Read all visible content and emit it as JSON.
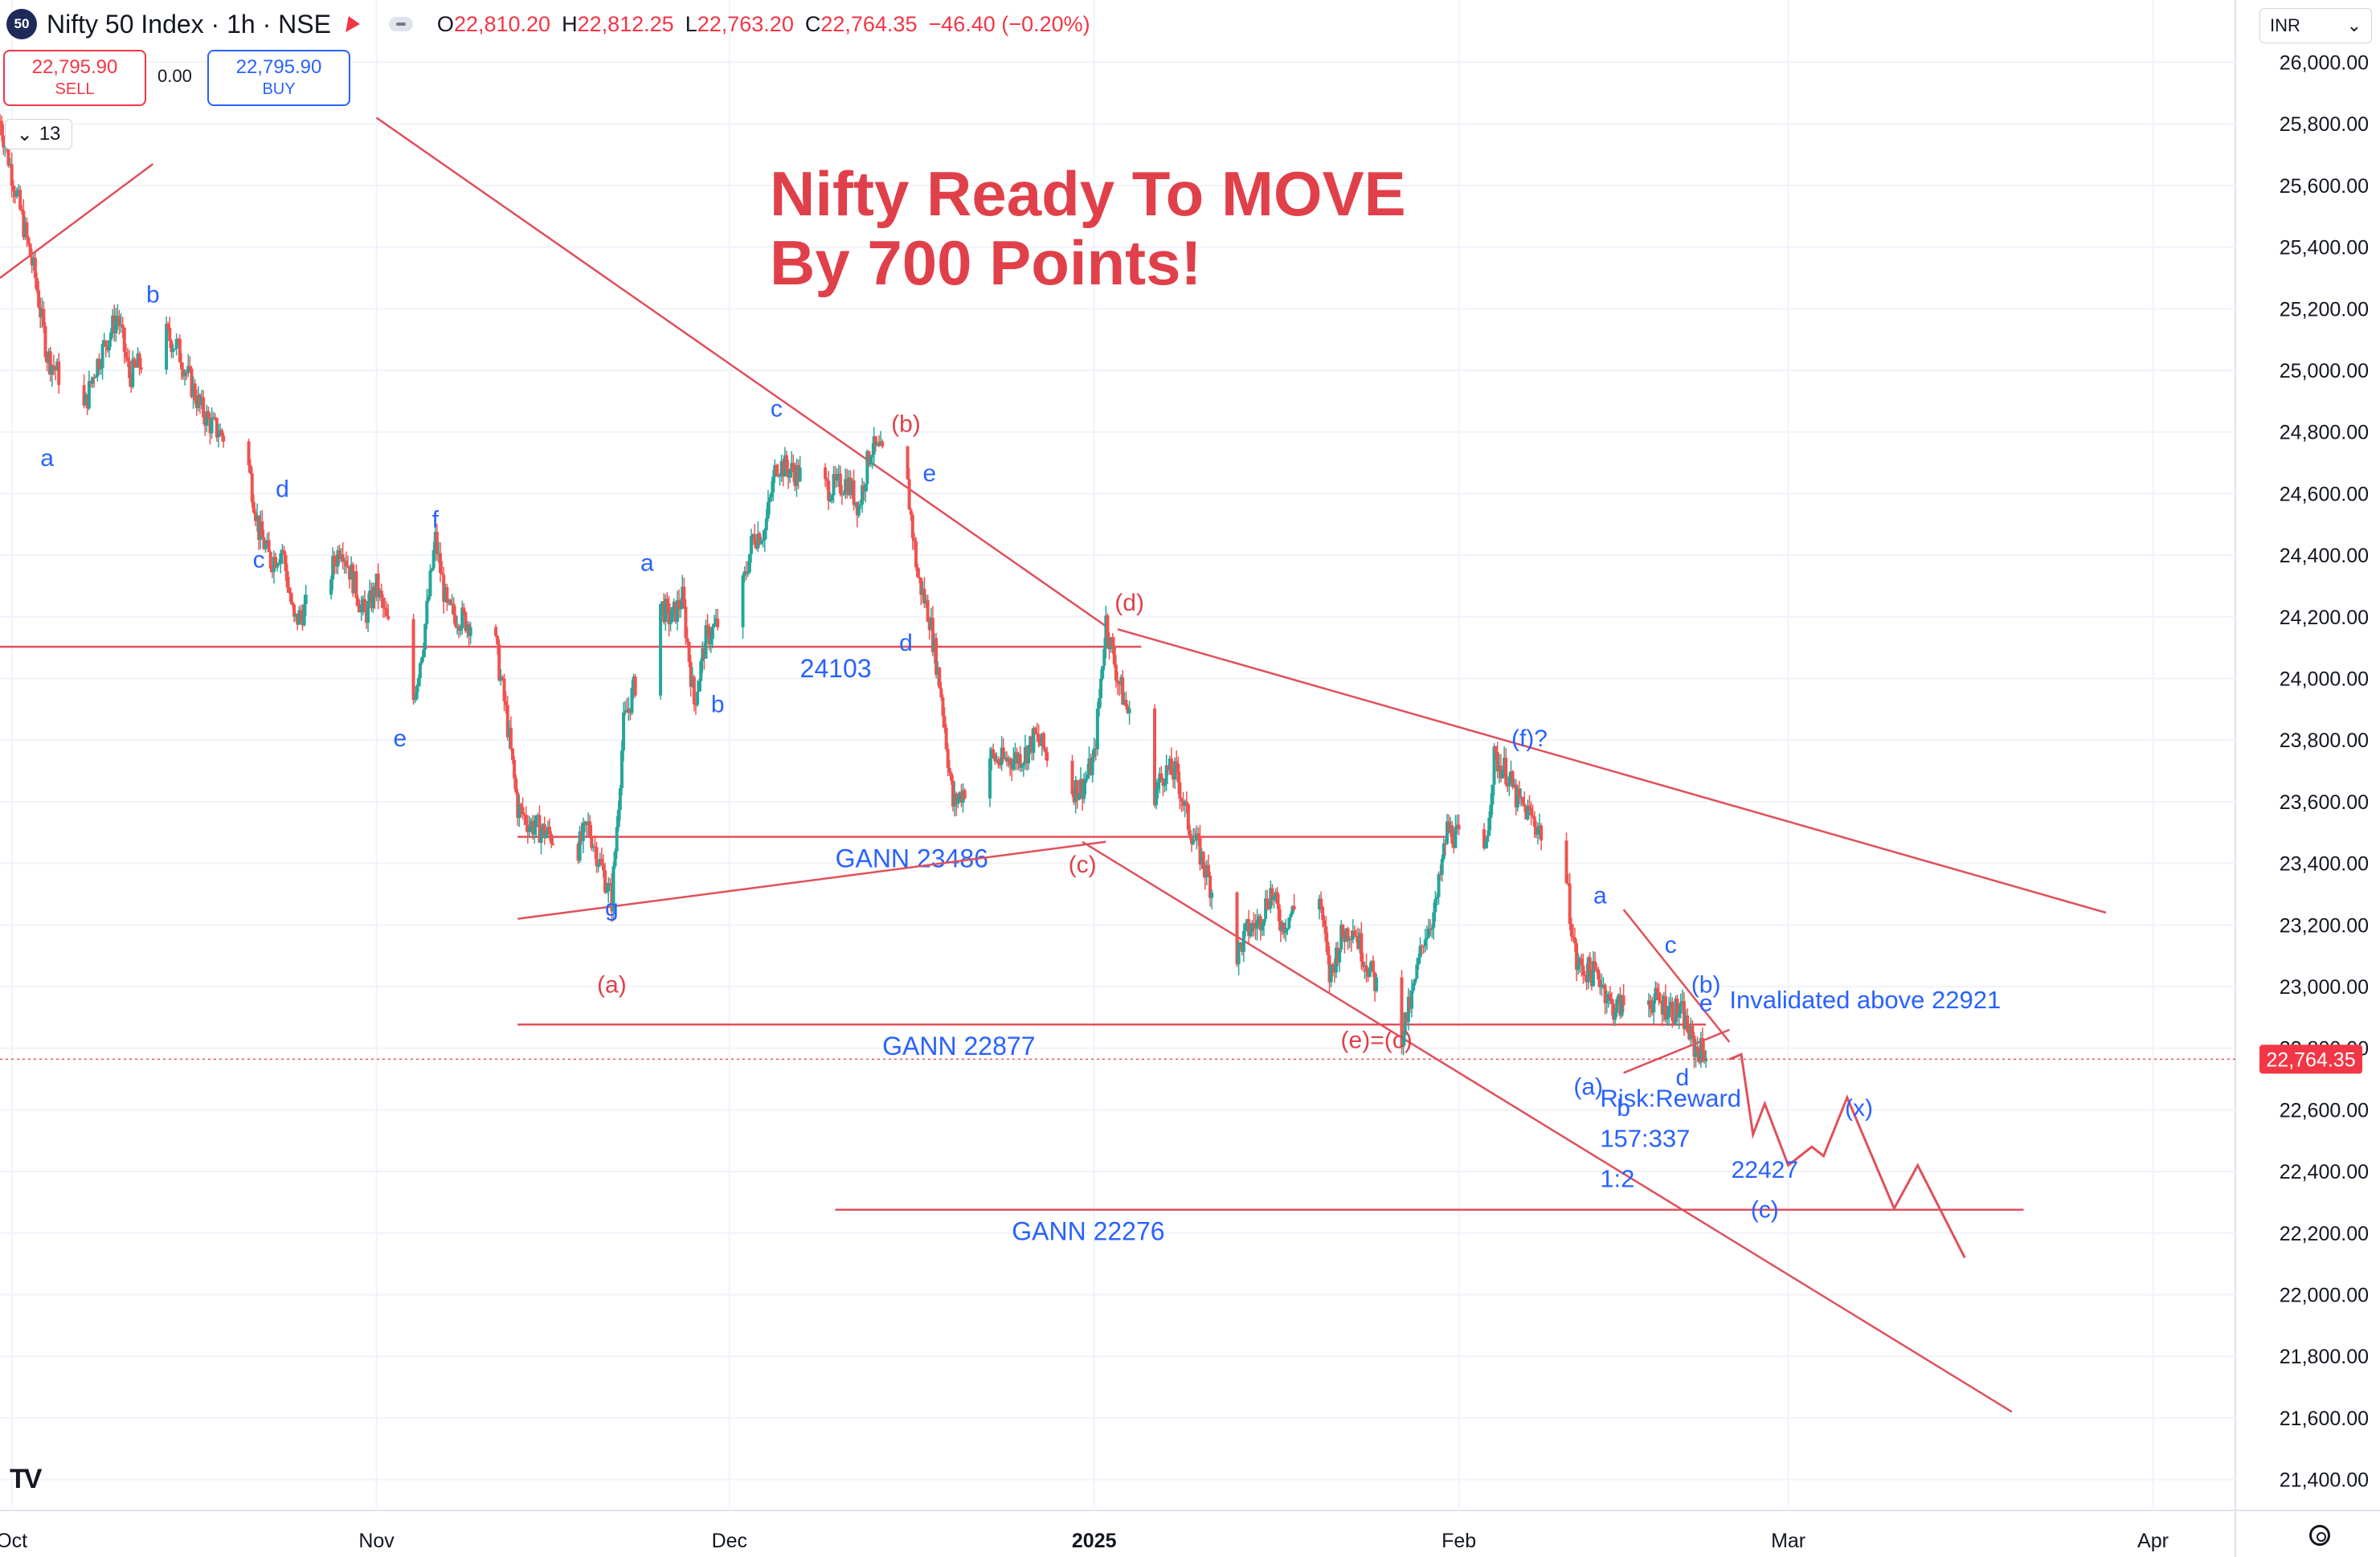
{
  "header": {
    "logo_text": "50",
    "symbol": "Nifty 50 Index · 1h · NSE",
    "ohlc": [
      {
        "k": "O",
        "v": "22,810.20"
      },
      {
        "k": "H",
        "v": "22,812.25"
      },
      {
        "k": "L",
        "v": "22,763.20"
      },
      {
        "k": "C",
        "v": "22,764.35"
      }
    ],
    "change": "−46.40 (−0.20%)",
    "sell_price": "22,795.90",
    "sell_label": "SELL",
    "buy_price": "22,795.90",
    "buy_label": "BUY",
    "spread": "0.00",
    "indicator_count": "13",
    "currency": "INR"
  },
  "title_line1": "Nifty Ready To MOVE",
  "title_line2": "By 700 Points!",
  "colors": {
    "up": "#26a69a",
    "down": "#ef5350",
    "annot_red": "#e0404a",
    "annot_blue": "#2962ff",
    "line": "#e0505a"
  },
  "chart_data": {
    "type": "candlestick",
    "title": "Nifty Ready To MOVE By 700 Points!",
    "timeframe": "1h",
    "y_axis": {
      "ticks": [
        "26,000.00",
        "25,800.00",
        "25,600.00",
        "25,400.00",
        "25,200.00",
        "25,000.00",
        "24,800.00",
        "24,600.00",
        "24,400.00",
        "24,200.00",
        "24,000.00",
        "23,800.00",
        "23,600.00",
        "23,400.00",
        "23,200.00",
        "23,000.00",
        "22,800.00",
        "22,600.00",
        "22,400.00",
        "22,200.00",
        "22,000.00",
        "21,800.00",
        "21,600.00",
        "21,400.00"
      ],
      "tick_values": [
        26000,
        25800,
        25600,
        25400,
        25200,
        25000,
        24800,
        24600,
        24400,
        24200,
        24000,
        23800,
        23600,
        23400,
        23200,
        23000,
        22800,
        22600,
        22400,
        22200,
        22000,
        21800,
        21600,
        21400
      ],
      "range": [
        21300,
        26150
      ]
    },
    "x_axis": {
      "ticks": [
        {
          "label": "Oct",
          "bold": false,
          "d": "2024-10-01"
        },
        {
          "label": "Nov",
          "bold": false,
          "d": "2024-11-01"
        },
        {
          "label": "Dec",
          "bold": false,
          "d": "2024-12-01"
        },
        {
          "label": "2025",
          "bold": true,
          "d": "2025-01-01"
        },
        {
          "label": "Feb",
          "bold": false,
          "d": "2025-02-01"
        },
        {
          "label": "Mar",
          "bold": false,
          "d": "2025-03-01"
        },
        {
          "label": "Apr",
          "bold": false,
          "d": "2025-04-01"
        }
      ],
      "range": [
        "2024-09-30",
        "2025-04-08"
      ]
    },
    "last_price": "22,764.35",
    "last_price_value": 22764.35,
    "price_path": [
      [
        "2024-09-30",
        25810
      ],
      [
        "2024-10-01",
        25640
      ],
      [
        "2024-10-03",
        25300
      ],
      [
        "2024-10-04",
        25050
      ],
      [
        "2024-10-07",
        24850
      ],
      [
        "2024-10-08",
        25000
      ],
      [
        "2024-10-10",
        25180
      ],
      [
        "2024-10-11",
        24980
      ],
      [
        "2024-10-14",
        25120
      ],
      [
        "2024-10-15",
        25080
      ],
      [
        "2024-10-17",
        24880
      ],
      [
        "2024-10-18",
        24820
      ],
      [
        "2024-10-21",
        24720
      ],
      [
        "2024-10-22",
        24480
      ],
      [
        "2024-10-23",
        24380
      ],
      [
        "2024-10-24",
        24420
      ],
      [
        "2024-10-25",
        24180
      ],
      [
        "2024-10-28",
        24330
      ],
      [
        "2024-10-29",
        24440
      ],
      [
        "2024-10-30",
        24320
      ],
      [
        "2024-10-31",
        24200
      ],
      [
        "2024-11-01",
        24300
      ],
      [
        "2024-11-04",
        23900
      ],
      [
        "2024-11-05",
        24130
      ],
      [
        "2024-11-06",
        24450
      ],
      [
        "2024-11-07",
        24220
      ],
      [
        "2024-11-08",
        24200
      ],
      [
        "2024-11-11",
        24140
      ],
      [
        "2024-11-12",
        23890
      ],
      [
        "2024-11-13",
        23580
      ],
      [
        "2024-11-14",
        23530
      ],
      [
        "2024-11-18",
        23440
      ],
      [
        "2024-11-19",
        23520
      ],
      [
        "2024-11-21",
        23280
      ],
      [
        "2024-11-22",
        23850
      ],
      [
        "2024-11-25",
        24250
      ],
      [
        "2024-11-26",
        24190
      ],
      [
        "2024-11-27",
        24260
      ],
      [
        "2024-11-28",
        23920
      ],
      [
        "2024-11-29",
        24130
      ],
      [
        "2024-12-02",
        24270
      ],
      [
        "2024-12-03",
        24460
      ],
      [
        "2024-12-04",
        24480
      ],
      [
        "2024-12-05",
        24700
      ],
      [
        "2024-12-06",
        24680
      ],
      [
        "2024-12-09",
        24620
      ],
      [
        "2024-12-10",
        24620
      ],
      [
        "2024-12-11",
        24640
      ],
      [
        "2024-12-12",
        24560
      ],
      [
        "2024-12-13",
        24750
      ],
      [
        "2024-12-16",
        24670
      ],
      [
        "2024-12-17",
        24330
      ],
      [
        "2024-12-18",
        24200
      ],
      [
        "2024-12-19",
        23950
      ],
      [
        "2024-12-20",
        23590
      ],
      [
        "2024-12-23",
        23750
      ],
      [
        "2024-12-24",
        23730
      ],
      [
        "2024-12-26",
        23750
      ],
      [
        "2024-12-27",
        23810
      ],
      [
        "2024-12-30",
        23640
      ],
      [
        "2024-12-31",
        23650
      ],
      [
        "2025-01-01",
        23740
      ],
      [
        "2025-01-02",
        24190
      ],
      [
        "2025-01-03",
        24000
      ],
      [
        "2025-01-06",
        23620
      ],
      [
        "2025-01-07",
        23700
      ],
      [
        "2025-01-08",
        23690
      ],
      [
        "2025-01-09",
        23530
      ],
      [
        "2025-01-10",
        23430
      ],
      [
        "2025-01-13",
        23090
      ],
      [
        "2025-01-14",
        23180
      ],
      [
        "2025-01-15",
        23210
      ],
      [
        "2025-01-16",
        23310
      ],
      [
        "2025-01-17",
        23200
      ],
      [
        "2025-01-20",
        23350
      ],
      [
        "2025-01-21",
        23030
      ],
      [
        "2025-01-22",
        23160
      ],
      [
        "2025-01-23",
        23200
      ],
      [
        "2025-01-24",
        23090
      ],
      [
        "2025-01-27",
        22830
      ],
      [
        "2025-01-28",
        22960
      ],
      [
        "2025-01-29",
        23160
      ],
      [
        "2025-01-30",
        23250
      ],
      [
        "2025-01-31",
        23510
      ],
      [
        "2025-02-01",
        23480
      ],
      [
        "2025-02-03",
        23360
      ],
      [
        "2025-02-04",
        23740
      ],
      [
        "2025-02-05",
        23700
      ],
      [
        "2025-02-06",
        23600
      ],
      [
        "2025-02-07",
        23560
      ],
      [
        "2025-02-10",
        23380
      ],
      [
        "2025-02-11",
        23070
      ],
      [
        "2025-02-12",
        23050
      ],
      [
        "2025-02-13",
        23030
      ],
      [
        "2025-02-14",
        22930
      ],
      [
        "2025-02-17",
        22960
      ],
      [
        "2025-02-18",
        22950
      ],
      [
        "2025-02-19",
        22930
      ],
      [
        "2025-02-20",
        22910
      ],
      [
        "2025-02-21",
        22800
      ],
      [
        "2025-02-24",
        22764
      ]
    ],
    "projection": [
      [
        "2025-02-25",
        22780
      ],
      [
        "2025-02-26",
        22520
      ],
      [
        "2025-02-27",
        22620
      ],
      [
        "2025-03-01",
        22420
      ],
      [
        "2025-03-03",
        22480
      ],
      [
        "2025-03-04",
        22450
      ],
      [
        "2025-03-06",
        22640
      ],
      [
        "2025-03-10",
        22280
      ],
      [
        "2025-03-12",
        22420
      ],
      [
        "2025-03-16",
        22120
      ]
    ],
    "horizontal_levels": [
      {
        "label": "24103",
        "value": 24103,
        "from": "2024-09-30",
        "to": "2025-01-05",
        "label_at": "2024-12-07"
      },
      {
        "label": "GANN 23486",
        "value": 23486,
        "from": "2024-11-13",
        "to": "2025-01-31",
        "label_at": "2024-12-10"
      },
      {
        "label": "GANN 22877",
        "value": 22877,
        "from": "2024-11-13",
        "to": "2025-02-22",
        "label_at": "2024-12-14"
      },
      {
        "label": "GANN 22276",
        "value": 22276,
        "from": "2024-12-10",
        "to": "2025-03-21",
        "label_at": "2024-12-25"
      }
    ],
    "trendlines": [
      {
        "from": [
          "2024-11-01",
          25820
        ],
        "to": [
          "2025-01-02",
          24170
        ]
      },
      {
        "from": [
          "2025-01-03",
          24160
        ],
        "to": [
          "2025-03-28",
          23240
        ]
      },
      {
        "from": [
          "2024-11-13",
          23220
        ],
        "to": [
          "2025-01-02",
          23470
        ]
      },
      {
        "from": [
          "2024-12-31",
          23470
        ],
        "to": [
          "2025-03-20",
          21620
        ]
      },
      {
        "from": [
          "2024-09-30",
          25300
        ],
        "to": [
          "2024-10-13",
          25670
        ]
      },
      {
        "from": [
          "2025-02-15",
          22720
        ],
        "to": [
          "2025-02-24",
          22860
        ]
      },
      {
        "from": [
          "2025-02-15",
          23250
        ],
        "to": [
          "2025-02-24",
          22820
        ]
      }
    ],
    "wave_labels": [
      {
        "t": "b",
        "d": "2024-10-13",
        "v": 25220,
        "c": "blue"
      },
      {
        "t": "a",
        "d": "2024-10-04",
        "v": 24690,
        "c": "blue"
      },
      {
        "t": "d",
        "d": "2024-10-24",
        "v": 24590,
        "c": "blue"
      },
      {
        "t": "c",
        "d": "2024-10-22",
        "v": 24360,
        "c": "blue"
      },
      {
        "t": "f",
        "d": "2024-11-06",
        "v": 24490,
        "c": "blue"
      },
      {
        "t": "e",
        "d": "2024-11-03",
        "v": 23780,
        "c": "blue"
      },
      {
        "t": "a",
        "d": "2024-11-24",
        "v": 24350,
        "c": "blue"
      },
      {
        "t": "b",
        "d": "2024-11-30",
        "v": 23890,
        "c": "blue"
      },
      {
        "t": "g",
        "d": "2024-11-21",
        "v": 23230,
        "c": "blue"
      },
      {
        "t": "(a)",
        "d": "2024-11-21",
        "v": 22980,
        "c": "red"
      },
      {
        "t": "c",
        "d": "2024-12-05",
        "v": 24850,
        "c": "blue"
      },
      {
        "t": "(b)",
        "d": "2024-12-16",
        "v": 24800,
        "c": "red"
      },
      {
        "t": "e",
        "d": "2024-12-18",
        "v": 24640,
        "c": "blue"
      },
      {
        "t": "d",
        "d": "2024-12-16",
        "v": 24090,
        "c": "blue"
      },
      {
        "t": "(c)",
        "d": "2024-12-31",
        "v": 23370,
        "c": "red"
      },
      {
        "t": "(d)",
        "d": "2025-01-04",
        "v": 24220,
        "c": "red"
      },
      {
        "t": "(e)=(c)",
        "d": "2025-01-25",
        "v": 22800,
        "c": "red"
      },
      {
        "t": "(f)?",
        "d": "2025-02-07",
        "v": 23780,
        "c": "blue"
      },
      {
        "t": "a",
        "d": "2025-02-13",
        "v": 23270,
        "c": "blue"
      },
      {
        "t": "c",
        "d": "2025-02-19",
        "v": 23110,
        "c": "blue"
      },
      {
        "t": "(b)",
        "d": "2025-02-22",
        "v": 22980,
        "c": "blue"
      },
      {
        "t": "e",
        "d": "2025-02-22",
        "v": 22920,
        "c": "blue"
      },
      {
        "t": "(a)",
        "d": "2025-02-12",
        "v": 22650,
        "c": "blue"
      },
      {
        "t": "b",
        "d": "2025-02-15",
        "v": 22580,
        "c": "blue"
      },
      {
        "t": "d",
        "d": "2025-02-20",
        "v": 22680,
        "c": "blue"
      },
      {
        "t": "(x)",
        "d": "2025-03-07",
        "v": 22580,
        "c": "blue"
      },
      {
        "t": "22427",
        "d": "2025-02-27",
        "v": 22380,
        "c": "blue"
      },
      {
        "t": "(c)",
        "d": "2025-02-27",
        "v": 22250,
        "c": "blue"
      }
    ],
    "notes": [
      {
        "t": "Invalidated above 22921",
        "d": "2025-02-24",
        "v": 22930
      },
      {
        "t": "Risk:Reward",
        "d": "2025-02-13",
        "v": 22610
      },
      {
        "t": "157:337",
        "d": "2025-02-13",
        "v": 22480
      },
      {
        "t": "1:2",
        "d": "2025-02-13",
        "v": 22350
      }
    ]
  }
}
